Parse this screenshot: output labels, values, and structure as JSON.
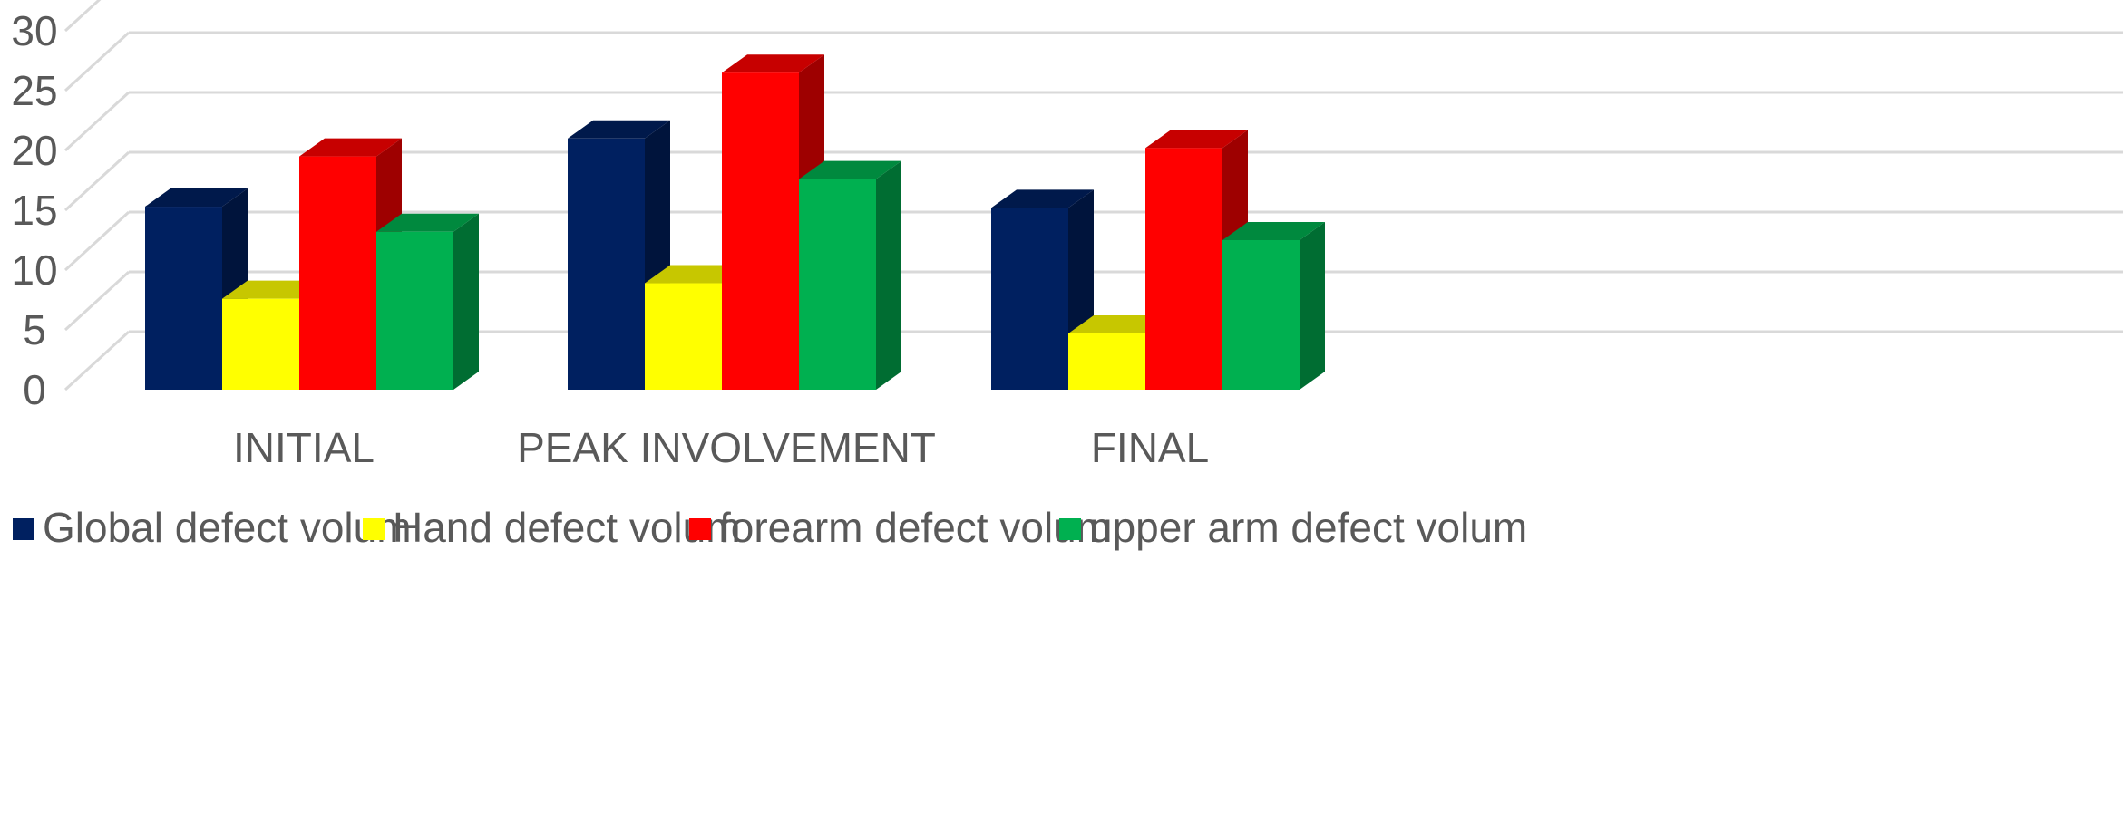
{
  "chart_data": {
    "type": "bar",
    "style": "3d-clustered-column",
    "categories": [
      "INITIAL",
      "PEAK INVOLVEMENT",
      "FINAL"
    ],
    "series": [
      {
        "name": "Global defect volum",
        "color": "#002060",
        "values": [
          15.3,
          21.0,
          15.2
        ]
      },
      {
        "name": "Hand defect volum",
        "color": "#ffff00",
        "values": [
          7.6,
          8.9,
          4.7
        ]
      },
      {
        "name": "forearm defect volum",
        "color": "#ff0000",
        "values": [
          19.5,
          26.5,
          20.2
        ]
      },
      {
        "name": "upper arm defect volum",
        "color": "#00b050",
        "values": [
          13.2,
          17.6,
          12.5
        ]
      }
    ],
    "title": "",
    "xlabel": "",
    "ylabel": "",
    "ylim": [
      0,
      30
    ],
    "yticks": [
      "0",
      "5",
      "10",
      "15",
      "20",
      "25",
      "30"
    ],
    "grid": true,
    "legend_position": "bottom"
  }
}
